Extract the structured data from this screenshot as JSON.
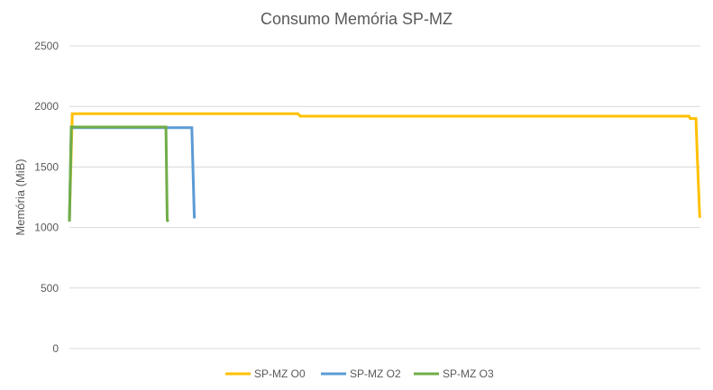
{
  "chart_data": {
    "type": "line",
    "title": "Consumo Memória SP-MZ",
    "xlabel": "",
    "ylabel": "Memória (MiB)",
    "ylim": [
      0,
      2500
    ],
    "yticks": [
      0,
      500,
      1000,
      1500,
      2000,
      2500
    ],
    "xlim": [
      0,
      100
    ],
    "grid": true,
    "legend": "bottom",
    "series": [
      {
        "name": "SP-MZ O0",
        "color": "#FFC000",
        "points": [
          [
            0.0,
            1050
          ],
          [
            0.45,
            1940
          ],
          [
            8,
            1940
          ],
          [
            15.5,
            1940
          ],
          [
            30,
            1940
          ],
          [
            36.2,
            1940
          ],
          [
            36.6,
            1920
          ],
          [
            50,
            1920
          ],
          [
            70,
            1920
          ],
          [
            98.2,
            1920
          ],
          [
            98.4,
            1900
          ],
          [
            99.3,
            1900
          ],
          [
            99.5,
            1600
          ],
          [
            99.9,
            1080
          ]
        ]
      },
      {
        "name": "SP-MZ O2",
        "color": "#5B9BD5",
        "points": [
          [
            0.0,
            1050
          ],
          [
            0.3,
            1825
          ],
          [
            10,
            1825
          ],
          [
            19.4,
            1825
          ],
          [
            19.6,
            1450
          ],
          [
            19.8,
            1075
          ]
        ]
      },
      {
        "name": "SP-MZ O3",
        "color": "#70AD47",
        "points": [
          [
            0.0,
            1050
          ],
          [
            0.3,
            1830
          ],
          [
            8,
            1830
          ],
          [
            15.3,
            1830
          ],
          [
            15.5,
            1060
          ],
          [
            15.7,
            1050
          ]
        ]
      }
    ]
  }
}
